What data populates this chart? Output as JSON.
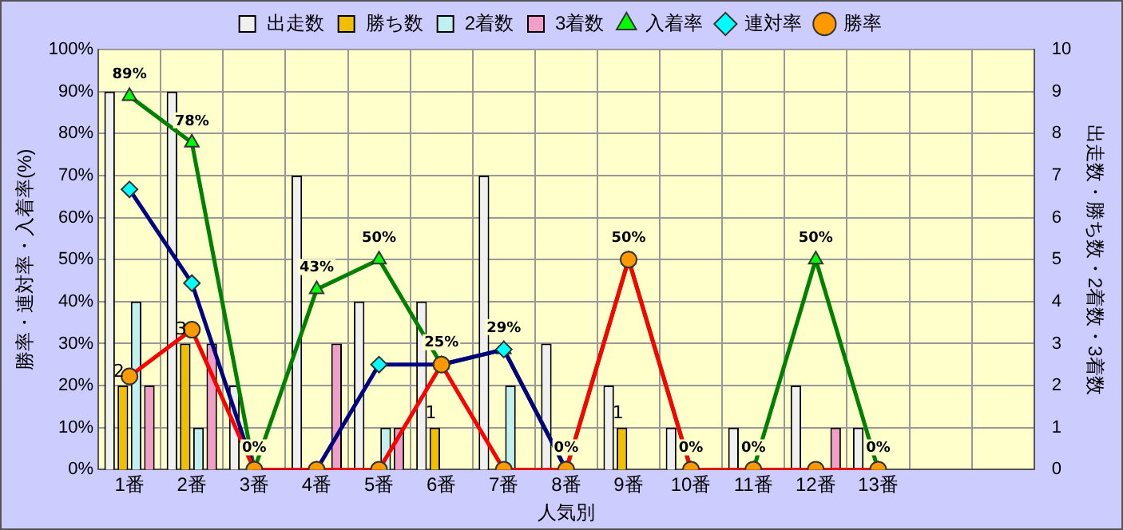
{
  "chart_data": {
    "type": "bar",
    "xlabel": "人気別",
    "ylabel": "勝率・連対率・入着率(%)",
    "y2label": "出走数・勝ち数・2着数・3着数",
    "categories": [
      "1番",
      "2番",
      "3番",
      "4番",
      "5番",
      "6番",
      "7番",
      "8番",
      "9番",
      "10番",
      "11番",
      "12番",
      "13番",
      null,
      null
    ],
    "series": [
      {
        "name": "出走数",
        "axis": "y2",
        "color": "#f0f0f0",
        "values": [
          9,
          9,
          2,
          7,
          4,
          4,
          7,
          3,
          2,
          1,
          1,
          2,
          1,
          null,
          null
        ]
      },
      {
        "name": "勝ち数",
        "axis": "y2",
        "color": "#f0c000",
        "values": [
          2,
          3,
          0,
          0,
          0,
          1,
          0,
          0,
          1,
          0,
          0,
          0,
          0,
          null,
          null
        ],
        "value_labels": [
          "2",
          "3",
          null,
          null,
          null,
          "1",
          null,
          null,
          "1",
          null,
          null,
          null,
          null,
          null,
          null
        ]
      },
      {
        "name": "2着数",
        "axis": "y2",
        "color": "#c0f0f0",
        "values": [
          4,
          1,
          0,
          0,
          1,
          0,
          2,
          0,
          0,
          0,
          0,
          0,
          0,
          null,
          null
        ]
      },
      {
        "name": "3着数",
        "axis": "y2",
        "color": "#f0a0c8",
        "values": [
          2,
          3,
          0,
          3,
          1,
          0,
          0,
          0,
          0,
          0,
          0,
          1,
          0,
          null,
          null
        ]
      },
      {
        "name": "入着率",
        "type": "line",
        "axis": "y",
        "color": "#008000",
        "marker": "triangle",
        "values": [
          88.9,
          77.8,
          0,
          42.9,
          50,
          25,
          28.6,
          0,
          50,
          0,
          0,
          50,
          0,
          null,
          null
        ],
        "value_labels": [
          "89%",
          "78%",
          "0%",
          "43%",
          "50%",
          "25%",
          "29%",
          "0%",
          "50%",
          "0%",
          "0%",
          "50%",
          "0%",
          null,
          null
        ]
      },
      {
        "name": "連対率",
        "type": "line",
        "axis": "y",
        "color": "#000080",
        "marker": "diamond",
        "values": [
          66.7,
          44.4,
          0,
          0,
          25,
          25,
          28.6,
          0,
          null,
          null,
          null,
          null,
          null,
          null,
          null
        ]
      },
      {
        "name": "勝率",
        "type": "line",
        "axis": "y",
        "color": "#ff0000",
        "marker": "circle",
        "values": [
          22.2,
          33.3,
          0,
          0,
          0,
          25,
          0,
          0,
          50,
          0,
          0,
          0,
          0,
          null,
          null
        ]
      }
    ],
    "ylim": [
      0,
      100
    ],
    "yticks": [
      {
        "value": 0,
        "label": "0%"
      },
      {
        "value": 10,
        "label": "10%"
      },
      {
        "value": 20,
        "label": "20%"
      },
      {
        "value": 30,
        "label": "30%"
      },
      {
        "value": 40,
        "label": "40%"
      },
      {
        "value": 50,
        "label": "50%"
      },
      {
        "value": 60,
        "label": "60%"
      },
      {
        "value": 70,
        "label": "70%"
      },
      {
        "value": 80,
        "label": "80%"
      },
      {
        "value": 90,
        "label": "90%"
      },
      {
        "value": 100,
        "label": "100%"
      }
    ],
    "y2lim": [
      0,
      10
    ],
    "y2ticks": [
      0,
      1,
      2,
      3,
      4,
      5,
      6,
      7,
      8,
      9,
      10
    ],
    "grid": true,
    "legend": "top"
  }
}
